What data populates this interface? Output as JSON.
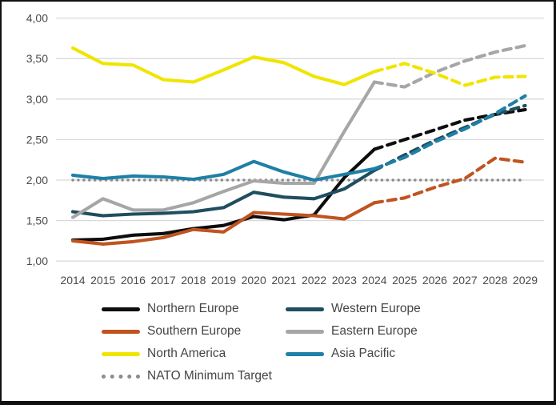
{
  "chart_data": {
    "type": "line",
    "title": "",
    "xlabel": "",
    "ylabel": "",
    "grid": true,
    "legend_position": "bottom",
    "x": [
      "2014",
      "2015",
      "2016",
      "2017",
      "2018",
      "2019",
      "2020",
      "2021",
      "2022",
      "2023",
      "2024",
      "2025",
      "2026",
      "2027",
      "2028",
      "2029"
    ],
    "y_axis": {
      "range": [
        1.0,
        4.0
      ],
      "tick_step": 0.5,
      "decimal_separator": ",",
      "ticks": [
        {
          "label": "4,00",
          "value": 4.0
        },
        {
          "label": "3,50",
          "value": 3.5
        },
        {
          "label": "3,00",
          "value": 3.0
        },
        {
          "label": "2,50",
          "value": 2.5
        },
        {
          "label": "2,00",
          "value": 2.0
        },
        {
          "label": "1,50",
          "value": 1.5
        },
        {
          "label": "1,00",
          "value": 1.0
        }
      ]
    },
    "projection_start_index": 10,
    "series": [
      {
        "id": "northern-europe",
        "name": "Northern Europe",
        "color": "#0d0d0d",
        "values": [
          1.26,
          1.27,
          1.32,
          1.34,
          1.4,
          1.44,
          1.55,
          1.51,
          1.57,
          2.03,
          2.38,
          2.5,
          2.62,
          2.74,
          2.81,
          2.87
        ]
      },
      {
        "id": "western-europe",
        "name": "Western Europe",
        "color": "#1F4E5F",
        "values": [
          1.61,
          1.56,
          1.58,
          1.59,
          1.61,
          1.66,
          1.85,
          1.79,
          1.77,
          1.89,
          2.12,
          2.31,
          2.49,
          2.65,
          2.81,
          2.92
        ]
      },
      {
        "id": "southern-europe",
        "name": "Southern Europe",
        "color": "#C05420",
        "values": [
          1.25,
          1.21,
          1.24,
          1.29,
          1.39,
          1.36,
          1.6,
          1.58,
          1.56,
          1.52,
          1.72,
          1.78,
          1.91,
          2.02,
          2.27,
          2.22
        ]
      },
      {
        "id": "eastern-europe",
        "name": "Eastern Europe",
        "color": "#A6A6A6",
        "values": [
          1.54,
          1.77,
          1.63,
          1.63,
          1.72,
          1.86,
          1.99,
          1.96,
          1.96,
          2.6,
          3.21,
          3.15,
          3.33,
          3.47,
          3.58,
          3.66
        ]
      },
      {
        "id": "north-america",
        "name": "North America",
        "color": "#F0E500",
        "values": [
          3.63,
          3.44,
          3.42,
          3.24,
          3.21,
          3.36,
          3.52,
          3.45,
          3.28,
          3.18,
          3.34,
          3.44,
          3.32,
          3.17,
          3.27,
          3.28
        ]
      },
      {
        "id": "asia-pacific",
        "name": "Asia Pacific",
        "color": "#1F7FA6",
        "values": [
          2.06,
          2.02,
          2.05,
          2.04,
          2.01,
          2.07,
          2.23,
          2.1,
          2.0,
          2.07,
          2.14,
          2.28,
          2.47,
          2.63,
          2.82,
          3.04
        ]
      }
    ],
    "target_line": {
      "id": "nato-minimum-target",
      "name": "NATO Minimum Target",
      "value": 2.0,
      "color": "#8C8C8C",
      "style": "dotted"
    }
  }
}
